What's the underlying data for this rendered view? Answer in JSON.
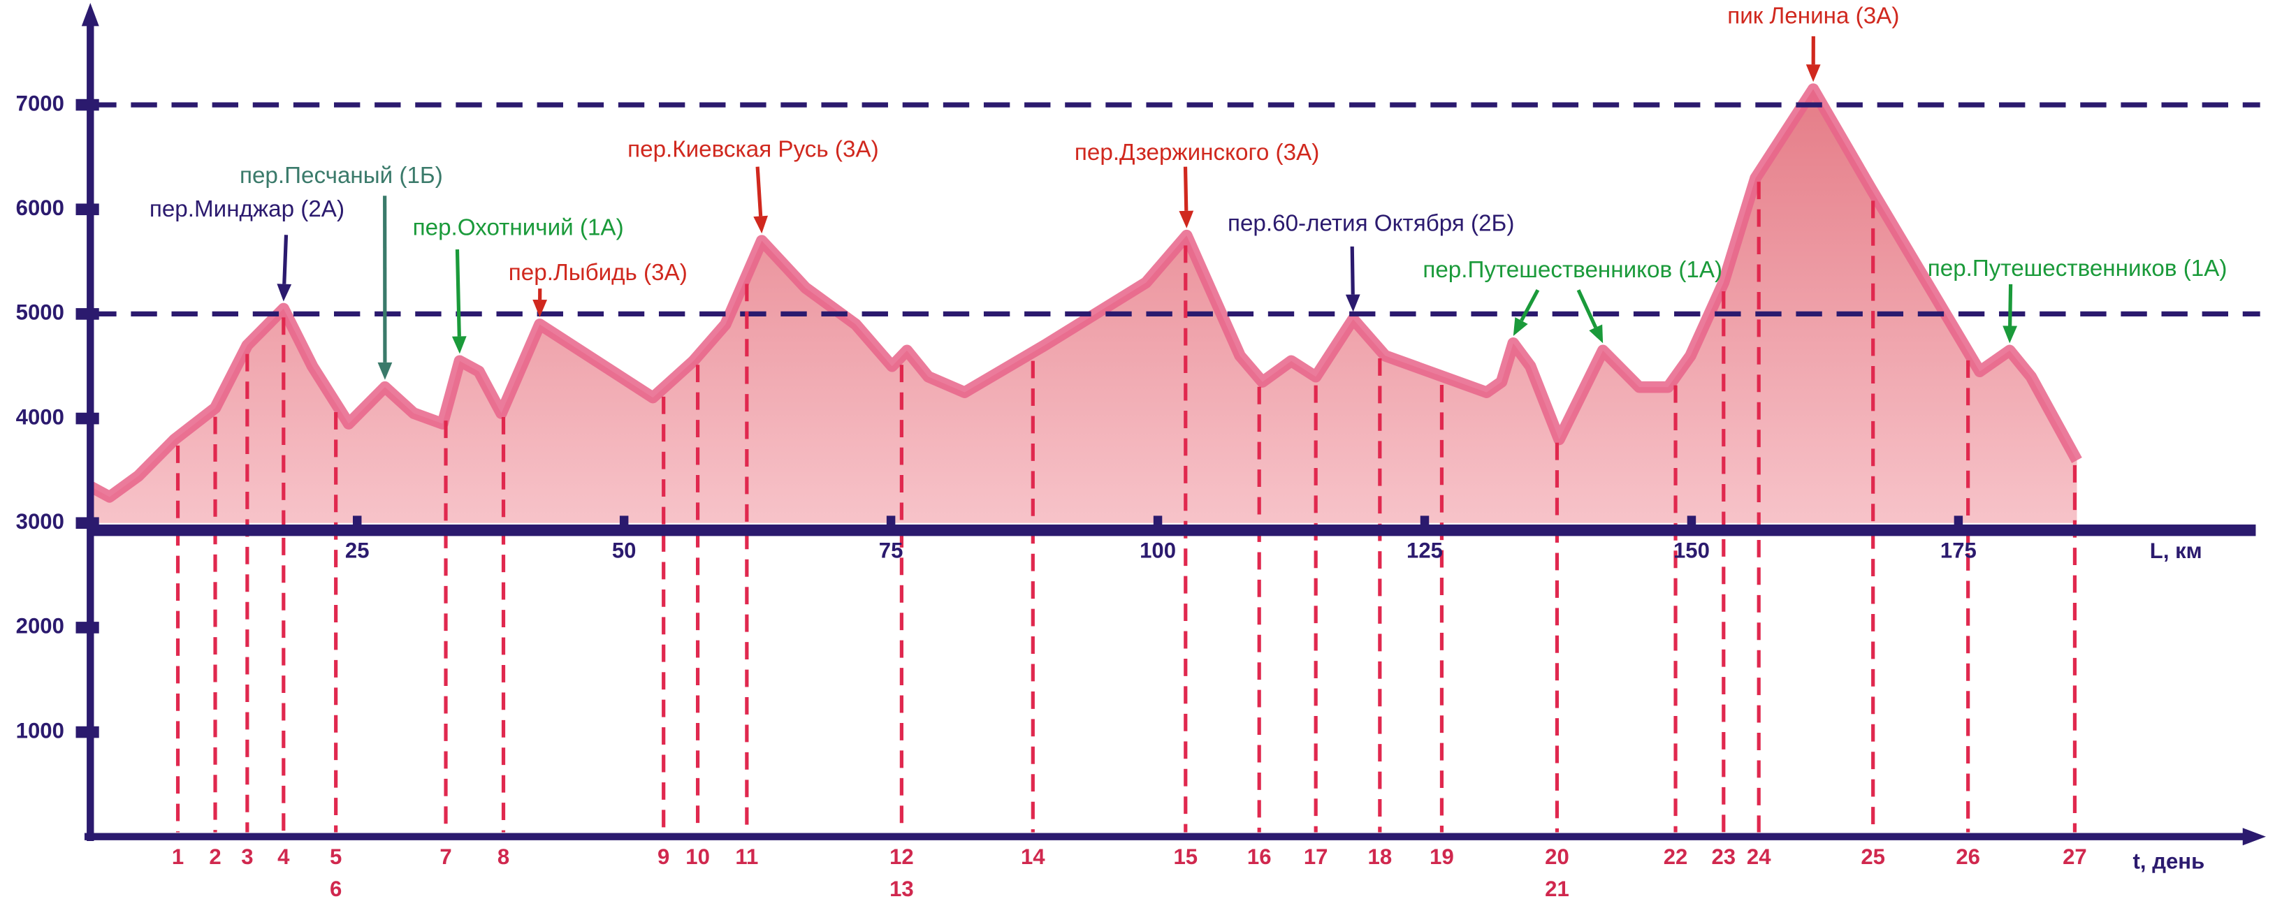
{
  "chart_data": {
    "type": "area",
    "x_label": "L, км",
    "t_label": "t, день",
    "xlim": [
      0,
      200
    ],
    "ylim": [
      0,
      8000
    ],
    "xticks": [
      25,
      50,
      75,
      100,
      125,
      150,
      175
    ],
    "yticks": [
      1000,
      2000,
      3000,
      4000,
      5000,
      6000,
      7000
    ],
    "baseline": 3000,
    "hlines": [
      7000,
      5000
    ],
    "color": "#e8648a",
    "x": [
      0,
      1.8,
      4.5,
      7.9,
      11.7,
      14.7,
      18.1,
      20.8,
      24.2,
      27.6,
      30.3,
      33.0,
      34.6,
      36.4,
      38.5,
      42.1,
      52.7,
      56.5,
      59.5,
      62.9,
      67.0,
      71.7,
      75.1,
      76.5,
      78.5,
      81.9,
      89.4,
      98.9,
      102.7,
      107.7,
      109.8,
      112.5,
      114.8,
      118.3,
      121.3,
      130.8,
      132.2,
      133.3,
      134.9,
      137.6,
      141.7,
      145.1,
      147.8,
      149.9,
      153.0,
      156.0,
      161.4,
      166.8,
      177.0,
      179.8,
      181.8,
      186.1
    ],
    "values": [
      3350,
      3250,
      3450,
      3800,
      4100,
      4700,
      5050,
      4500,
      3950,
      4300,
      4050,
      3950,
      4550,
      4450,
      4050,
      4900,
      4200,
      4550,
      4900,
      5700,
      5250,
      4900,
      4500,
      4650,
      4400,
      4250,
      4700,
      5300,
      5750,
      4600,
      4350,
      4550,
      4400,
      4950,
      4600,
      4250,
      4350,
      4720,
      4500,
      3800,
      4650,
      4300,
      4300,
      4600,
      5300,
      6300,
      7150,
      6200,
      4450,
      4650,
      4400,
      3600
    ],
    "day_markers": [
      {
        "x": 8.2,
        "labels": [
          "1"
        ]
      },
      {
        "x": 11.7,
        "labels": [
          "2"
        ]
      },
      {
        "x": 14.7,
        "labels": [
          "3"
        ]
      },
      {
        "x": 18.1,
        "labels": [
          "4"
        ]
      },
      {
        "x": 23.0,
        "labels": [
          "5",
          "6"
        ]
      },
      {
        "x": 33.3,
        "labels": [
          "7"
        ]
      },
      {
        "x": 38.7,
        "labels": [
          "8"
        ]
      },
      {
        "x": 53.7,
        "labels": [
          "9"
        ]
      },
      {
        "x": 56.9,
        "labels": [
          "10"
        ]
      },
      {
        "x": 61.5,
        "labels": [
          "11"
        ]
      },
      {
        "x": 76.0,
        "labels": [
          "12",
          "13"
        ]
      },
      {
        "x": 88.3,
        "labels": [
          "14"
        ]
      },
      {
        "x": 102.6,
        "labels": [
          "15"
        ]
      },
      {
        "x": 109.5,
        "labels": [
          "16"
        ]
      },
      {
        "x": 114.8,
        "labels": [
          "17"
        ]
      },
      {
        "x": 120.8,
        "labels": [
          "18"
        ]
      },
      {
        "x": 126.6,
        "labels": [
          "19"
        ]
      },
      {
        "x": 137.4,
        "labels": [
          "20",
          "21"
        ]
      },
      {
        "x": 148.5,
        "labels": [
          "22"
        ]
      },
      {
        "x": 153.0,
        "labels": [
          "23"
        ]
      },
      {
        "x": 156.3,
        "labels": [
          "24"
        ]
      },
      {
        "x": 167.0,
        "labels": [
          "25"
        ]
      },
      {
        "x": 175.9,
        "labels": [
          "26"
        ]
      },
      {
        "x": 185.9,
        "labels": [
          "27"
        ]
      }
    ],
    "annotations": [
      {
        "text": "пер.Минджар (2А)",
        "color": "#2b1a6e",
        "x": [
          18.1
        ]
      },
      {
        "text": "пер.Песчаный (1Б)",
        "color": "#3a7a6a",
        "x": [
          27.6
        ]
      },
      {
        "text": "пер.Охотничий (1А)",
        "color": "#1a9a3a",
        "x": [
          34.6
        ]
      },
      {
        "text": "пер.Лыбидь (3А)",
        "color": "#d0281e",
        "x": [
          42.1
        ]
      },
      {
        "text": "пер.Киевская Русь (3А)",
        "color": "#d0281e",
        "x": [
          62.9
        ]
      },
      {
        "text": "пер.Дзержинского (3А)",
        "color": "#d0281e",
        "x": [
          102.7
        ]
      },
      {
        "text": "пер.60-летия Октября (2Б)",
        "color": "#2b1a6e",
        "x": [
          118.3
        ]
      },
      {
        "text": "пер.Путешественников (1А)",
        "color": "#1a9a3a",
        "x": [
          133.3,
          141.7
        ]
      },
      {
        "text": "пик Ленина (3А)",
        "color": "#d0281e",
        "x": [
          161.4
        ]
      },
      {
        "text": "пер.Путешественников (1А)",
        "color": "#1a9a3a",
        "x": [
          179.8
        ]
      }
    ]
  }
}
